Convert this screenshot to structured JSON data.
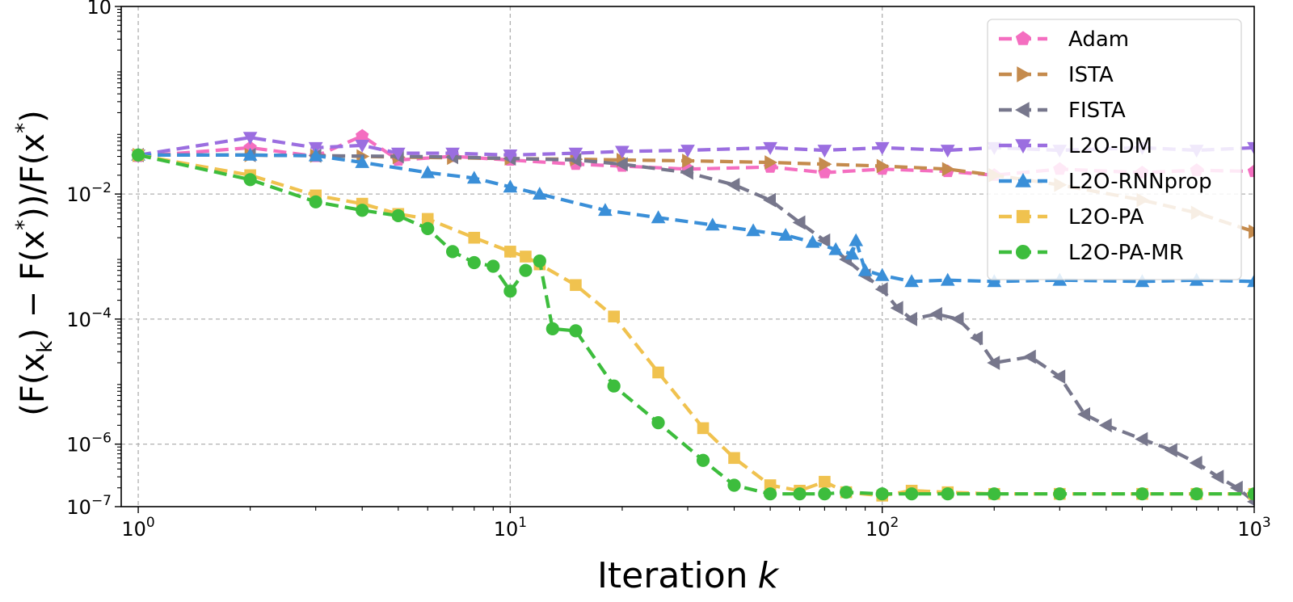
{
  "chart_data": {
    "type": "line",
    "xscale": "log",
    "yscale": "log",
    "xlim": [
      0.9,
      1000
    ],
    "ylim": [
      1e-07,
      10
    ],
    "xlabel": "Iteration",
    "xlabel_var": "k",
    "ylabel": "(F(x_k) − F(x*))/F(x*)",
    "ylabel_parts": {
      "open": "(F(x",
      "sub": "k",
      "mid": ") − F(x",
      "sup1": "*",
      "mid2": "))/F(x",
      "sup2": "*",
      "close": ")"
    },
    "grid": true,
    "legend_position": "top-right",
    "x_ticks": [
      {
        "base": "10",
        "exp": "0",
        "value": 1
      },
      {
        "base": "10",
        "exp": "1",
        "value": 10
      },
      {
        "base": "10",
        "exp": "2",
        "value": 100
      },
      {
        "base": "10",
        "exp": "3",
        "value": 1000
      }
    ],
    "y_ticks": [
      {
        "base": "10",
        "exp": "",
        "value": 10
      },
      {
        "base": "10",
        "exp": "−2",
        "value": 0.01
      },
      {
        "base": "10",
        "exp": "−4",
        "value": 0.0001
      },
      {
        "base": "10",
        "exp": "−6",
        "value": 1e-06
      },
      {
        "base": "10",
        "exp": "−7",
        "value": 1e-07
      }
    ],
    "series": [
      {
        "name": "Adam",
        "color": "#f46ec0",
        "marker": "pentagon",
        "x": [
          1,
          2,
          3,
          4,
          5,
          7,
          10,
          15,
          20,
          30,
          50,
          70,
          100,
          150,
          200,
          300,
          500,
          700,
          1000
        ],
        "y": [
          0.04,
          0.055,
          0.04,
          0.085,
          0.035,
          0.04,
          0.035,
          0.03,
          0.028,
          0.025,
          0.027,
          0.022,
          0.025,
          0.023,
          0.02,
          0.025,
          0.022,
          0.024,
          0.023
        ]
      },
      {
        "name": "ISTA",
        "color": "#c58b4d",
        "marker": "triangle-right",
        "x": [
          1,
          2,
          3,
          4,
          5,
          7,
          10,
          15,
          20,
          30,
          50,
          70,
          100,
          150,
          200,
          300,
          500,
          700,
          1000
        ],
        "y": [
          0.042,
          0.042,
          0.041,
          0.04,
          0.039,
          0.038,
          0.037,
          0.036,
          0.035,
          0.034,
          0.032,
          0.03,
          0.028,
          0.025,
          0.02,
          0.014,
          0.008,
          0.005,
          0.0025
        ]
      },
      {
        "name": "FISTA",
        "color": "#77778c",
        "marker": "triangle-left",
        "x": [
          1,
          2,
          3,
          5,
          7,
          10,
          15,
          20,
          30,
          40,
          50,
          60,
          70,
          80,
          90,
          100,
          110,
          120,
          140,
          160,
          180,
          200,
          250,
          300,
          350,
          400,
          500,
          600,
          700,
          800,
          900,
          1000
        ],
        "y": [
          0.042,
          0.042,
          0.041,
          0.04,
          0.039,
          0.037,
          0.035,
          0.03,
          0.022,
          0.014,
          0.008,
          0.0035,
          0.0018,
          0.0009,
          0.0005,
          0.0003,
          0.00015,
          0.0001,
          0.00012,
          0.0001,
          5e-05,
          2e-05,
          2.5e-05,
          1.2e-05,
          3e-06,
          2e-06,
          1.2e-06,
          8e-07,
          5e-07,
          3e-07,
          2e-07,
          1.2e-07
        ]
      },
      {
        "name": "L2O-DM",
        "color": "#9b6ee0",
        "marker": "triangle-down",
        "x": [
          1,
          2,
          3,
          4,
          5,
          7,
          10,
          15,
          20,
          30,
          50,
          70,
          100,
          150,
          200,
          300,
          500,
          700,
          1000
        ],
        "y": [
          0.042,
          0.08,
          0.055,
          0.06,
          0.045,
          0.045,
          0.042,
          0.045,
          0.048,
          0.05,
          0.055,
          0.05,
          0.055,
          0.05,
          0.055,
          0.05,
          0.055,
          0.05,
          0.055
        ]
      },
      {
        "name": "L2O-RNNprop",
        "color": "#3a8fd8",
        "marker": "triangle-up",
        "x": [
          1,
          2,
          3,
          4,
          6,
          8,
          10,
          12,
          18,
          25,
          35,
          45,
          55,
          65,
          75,
          83,
          85,
          90,
          100,
          120,
          150,
          200,
          300,
          500,
          700,
          1000
        ],
        "y": [
          0.042,
          0.042,
          0.041,
          0.032,
          0.022,
          0.018,
          0.013,
          0.01,
          0.0055,
          0.0042,
          0.0032,
          0.0026,
          0.0022,
          0.0017,
          0.0013,
          0.0011,
          0.0018,
          0.0006,
          0.0005,
          0.0004,
          0.00042,
          0.0004,
          0.00042,
          0.0004,
          0.00042,
          0.0004
        ]
      },
      {
        "name": "L2O-PA",
        "color": "#f0c24f",
        "marker": "square",
        "x": [
          1,
          2,
          3,
          4,
          5,
          6,
          8,
          10,
          11,
          12,
          15,
          19,
          25,
          33,
          40,
          50,
          60,
          70,
          80,
          100,
          120,
          150,
          200,
          300,
          500,
          700,
          1000
        ],
        "y": [
          0.042,
          0.02,
          0.0095,
          0.007,
          0.0048,
          0.004,
          0.002,
          0.0012,
          0.001,
          0.00075,
          0.00035,
          0.00011,
          1.4e-05,
          1.8e-06,
          6e-07,
          2.2e-07,
          1.8e-07,
          2.5e-07,
          1.7e-07,
          1.5e-07,
          1.8e-07,
          1.7e-07,
          1.6e-07,
          1.6e-07,
          1.6e-07,
          1.6e-07,
          1.6e-07
        ]
      },
      {
        "name": "L2O-PA-MR",
        "color": "#3dbd3d",
        "marker": "circle",
        "x": [
          1,
          2,
          3,
          4,
          5,
          6,
          7,
          8,
          9,
          10,
          11,
          12,
          13,
          15,
          19,
          25,
          33,
          40,
          50,
          60,
          70,
          80,
          100,
          120,
          150,
          200,
          300,
          500,
          700,
          1000
        ],
        "y": [
          0.042,
          0.017,
          0.0075,
          0.0055,
          0.0045,
          0.0028,
          0.0012,
          0.0008,
          0.0007,
          0.00028,
          0.0006,
          0.00085,
          7e-05,
          6.5e-05,
          8.5e-06,
          2.2e-06,
          5.5e-07,
          2.2e-07,
          1.6e-07,
          1.6e-07,
          1.6e-07,
          1.7e-07,
          1.6e-07,
          1.6e-07,
          1.6e-07,
          1.6e-07,
          1.6e-07,
          1.6e-07,
          1.6e-07,
          1.6e-07
        ]
      }
    ]
  }
}
